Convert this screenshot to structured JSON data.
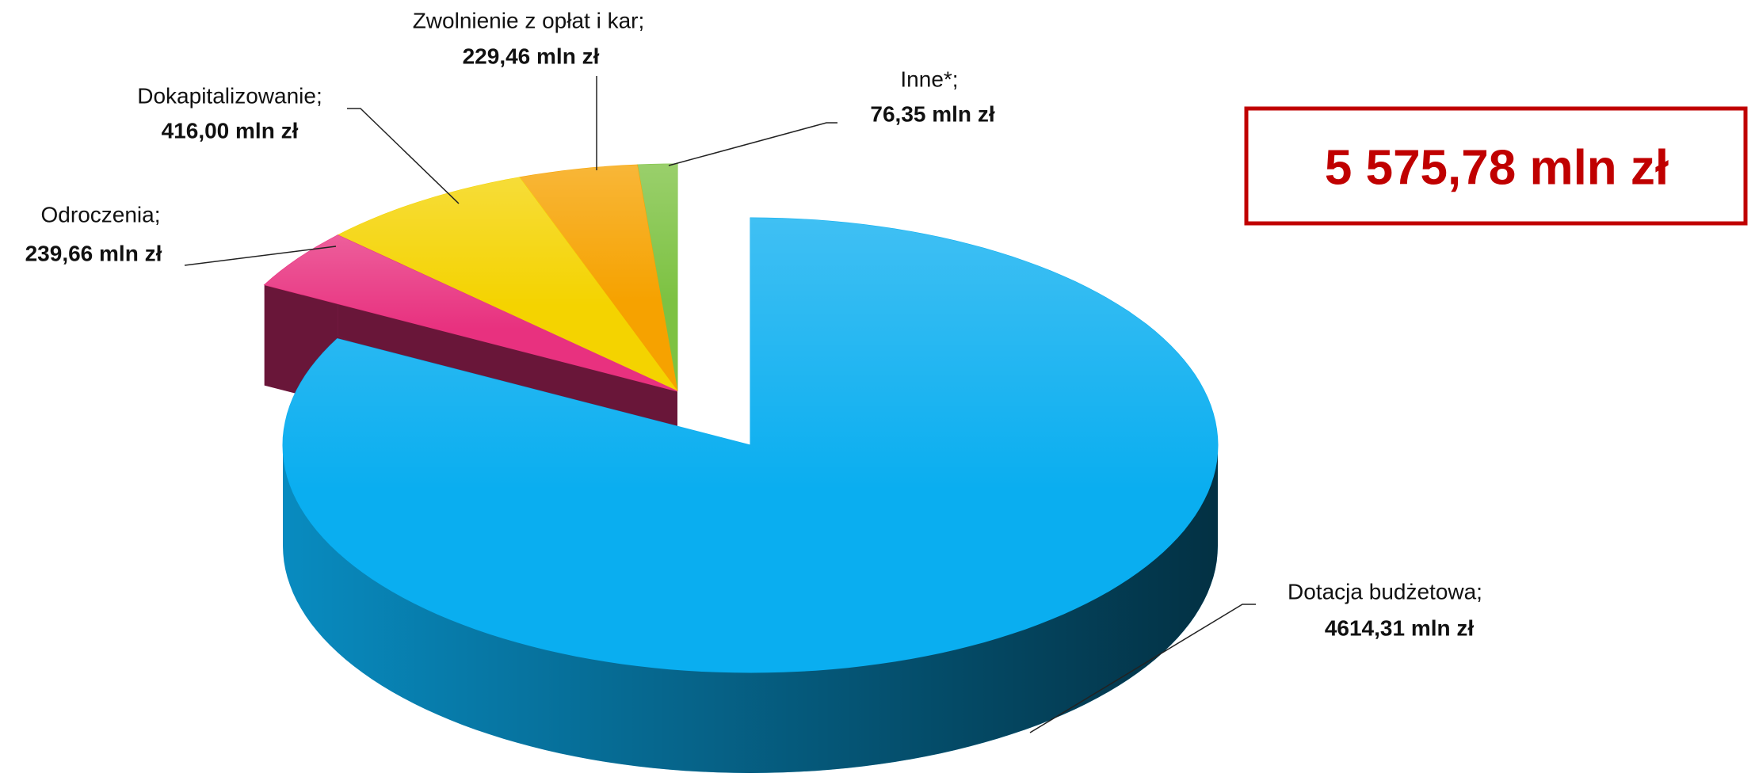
{
  "chart_data": {
    "type": "pie3d",
    "categories": [
      "Dotacja budżetowa;",
      "Odroczenia;",
      "Dokapitalizowanie;",
      "Zwolnienie z opłat i kar;",
      "Inne*;"
    ],
    "values": [
      4614.31,
      239.66,
      416.0,
      229.46,
      76.35
    ],
    "value_labels": [
      "4614,31 mln zł",
      "239,66 mln zł",
      "416,00 mln zł",
      "229,46 mln zł",
      "76,35 mln zł"
    ],
    "colors": [
      "#0aaef0",
      "#e8317f",
      "#f4d300",
      "#f6a200",
      "#7dc242"
    ],
    "annotation": "5 575,78 mln zł"
  }
}
